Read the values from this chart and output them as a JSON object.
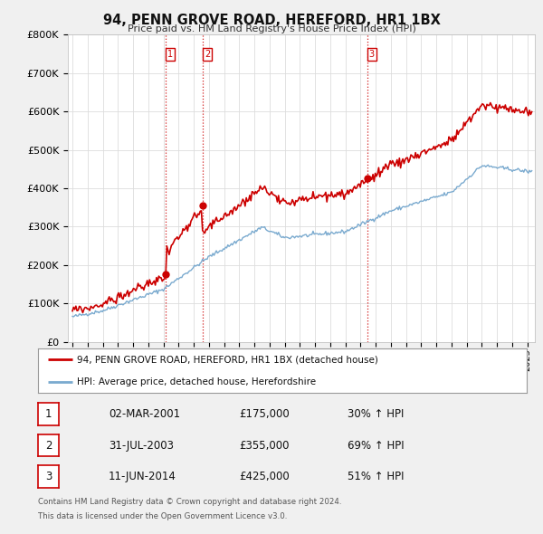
{
  "title": "94, PENN GROVE ROAD, HEREFORD, HR1 1BX",
  "subtitle": "Price paid vs. HM Land Registry's House Price Index (HPI)",
  "ylabel_ticks": [
    "£0",
    "£100K",
    "£200K",
    "£300K",
    "£400K",
    "£500K",
    "£600K",
    "£700K",
    "£800K"
  ],
  "ylim": [
    0,
    800000
  ],
  "xlim_start": 1994.7,
  "xlim_end": 2025.5,
  "red_line_color": "#cc0000",
  "blue_line_color": "#7aaacf",
  "vline_color": "#cc0000",
  "sale_points": [
    {
      "year": 2001.17,
      "price": 175000,
      "label": "1"
    },
    {
      "year": 2003.58,
      "price": 355000,
      "label": "2"
    },
    {
      "year": 2014.44,
      "price": 425000,
      "label": "3"
    }
  ],
  "legend_label_red": "94, PENN GROVE ROAD, HEREFORD, HR1 1BX (detached house)",
  "legend_label_blue": "HPI: Average price, detached house, Herefordshire",
  "table_rows": [
    {
      "num": "1",
      "date": "02-MAR-2001",
      "price": "£175,000",
      "pct": "30% ↑ HPI"
    },
    {
      "num": "2",
      "date": "31-JUL-2003",
      "price": "£355,000",
      "pct": "69% ↑ HPI"
    },
    {
      "num": "3",
      "date": "11-JUN-2014",
      "price": "£425,000",
      "pct": "51% ↑ HPI"
    }
  ],
  "footnote1": "Contains HM Land Registry data © Crown copyright and database right 2024.",
  "footnote2": "This data is licensed under the Open Government Licence v3.0.",
  "background_color": "#f0f0f0",
  "plot_bg_color": "#ffffff",
  "grid_color": "#dddddd"
}
